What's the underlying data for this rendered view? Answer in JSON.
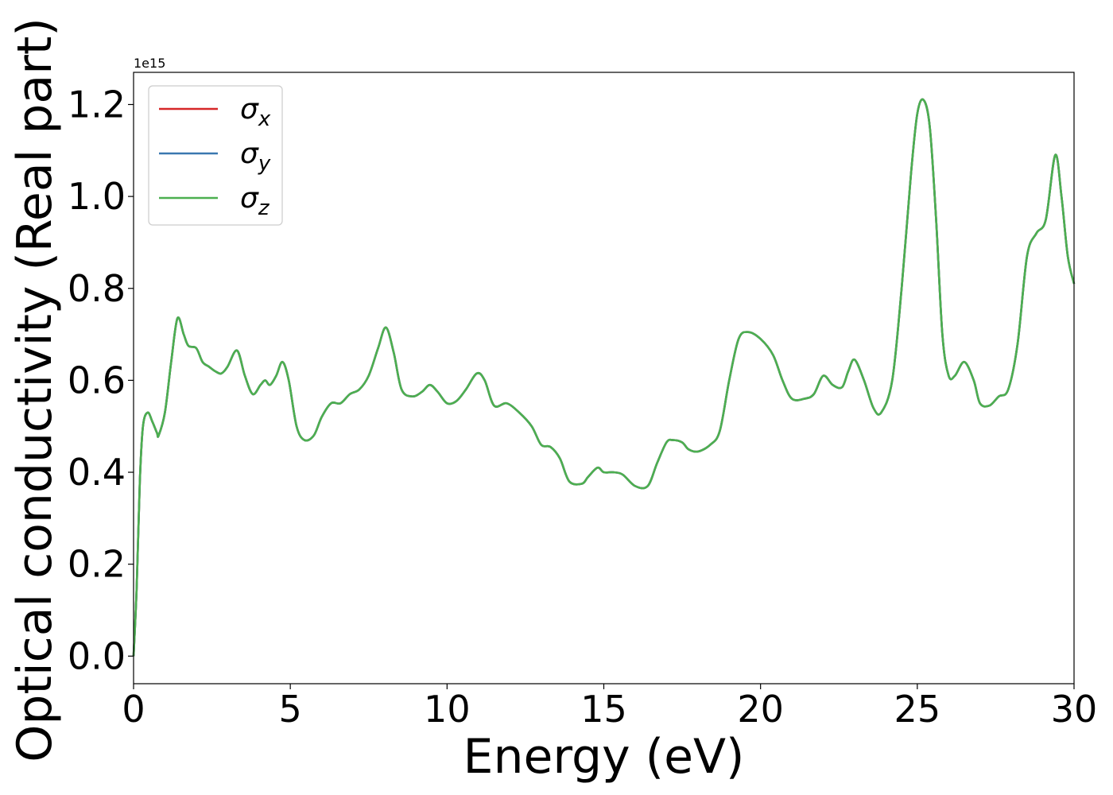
{
  "chart_data": {
    "type": "line",
    "xlabel": "Energy (eV)",
    "ylabel": "Optical conductivity (Real part)",
    "y_offset_label": "1e15",
    "xlim": [
      0,
      30
    ],
    "ylim": [
      -0.06,
      1.27
    ],
    "xticks": [
      0,
      5,
      10,
      15,
      20,
      25,
      30
    ],
    "yticks": [
      0.0,
      0.2,
      0.4,
      0.6,
      0.8,
      1.0,
      1.2
    ],
    "grid": false,
    "legend_position": "upper-left",
    "series": [
      {
        "name": "σx",
        "symbol": "σ",
        "subscript": "x",
        "color": "#d62728",
        "same_as": "shared_curve"
      },
      {
        "name": "σy",
        "symbol": "σ",
        "subscript": "y",
        "color": "#3a78b0",
        "same_as": "shared_curve"
      },
      {
        "name": "σz",
        "symbol": "σ",
        "subscript": "z",
        "color": "#4caf50",
        "same_as": "shared_curve"
      }
    ],
    "shared_curve": {
      "x": [
        0,
        0.1,
        0.2,
        0.3,
        0.45,
        0.6,
        0.75,
        0.8,
        1.0,
        1.2,
        1.4,
        1.6,
        1.75,
        2.0,
        2.2,
        2.4,
        2.6,
        2.8,
        3.0,
        3.3,
        3.55,
        3.8,
        4.05,
        4.2,
        4.35,
        4.55,
        4.75,
        4.95,
        5.2,
        5.45,
        5.75,
        6.0,
        6.3,
        6.6,
        6.9,
        7.2,
        7.5,
        7.8,
        8.05,
        8.3,
        8.55,
        8.9,
        9.2,
        9.45,
        9.7,
        10.0,
        10.3,
        10.6,
        10.95,
        11.2,
        11.5,
        11.9,
        12.3,
        12.7,
        13.0,
        13.3,
        13.6,
        13.9,
        14.3,
        14.5,
        14.8,
        15.0,
        15.3,
        15.6,
        16.0,
        16.4,
        16.7,
        17.0,
        17.2,
        17.5,
        17.7,
        18.0,
        18.4,
        18.7,
        19.0,
        19.3,
        19.6,
        20.0,
        20.4,
        20.7,
        21.0,
        21.4,
        21.7,
        22.0,
        22.3,
        22.6,
        22.8,
        23.0,
        23.3,
        23.6,
        23.85,
        24.2,
        24.5,
        24.8,
        25.0,
        25.2,
        25.4,
        25.6,
        25.8,
        26.0,
        26.2,
        26.5,
        26.8,
        27.0,
        27.3,
        27.6,
        27.9,
        28.2,
        28.5,
        28.8,
        29.1,
        29.4,
        29.6,
        29.8,
        30.0
      ],
      "y": [
        0.0,
        0.15,
        0.38,
        0.5,
        0.53,
        0.51,
        0.485,
        0.48,
        0.53,
        0.64,
        0.735,
        0.7,
        0.675,
        0.67,
        0.64,
        0.63,
        0.62,
        0.615,
        0.63,
        0.665,
        0.61,
        0.57,
        0.59,
        0.6,
        0.59,
        0.61,
        0.64,
        0.6,
        0.5,
        0.47,
        0.48,
        0.52,
        0.55,
        0.55,
        0.57,
        0.58,
        0.61,
        0.67,
        0.715,
        0.66,
        0.58,
        0.565,
        0.575,
        0.59,
        0.575,
        0.55,
        0.555,
        0.58,
        0.615,
        0.6,
        0.545,
        0.55,
        0.53,
        0.5,
        0.46,
        0.455,
        0.43,
        0.38,
        0.375,
        0.39,
        0.41,
        0.4,
        0.4,
        0.395,
        0.37,
        0.37,
        0.42,
        0.465,
        0.47,
        0.465,
        0.45,
        0.445,
        0.46,
        0.49,
        0.6,
        0.69,
        0.705,
        0.69,
        0.655,
        0.6,
        0.56,
        0.56,
        0.57,
        0.61,
        0.59,
        0.585,
        0.62,
        0.645,
        0.6,
        0.54,
        0.53,
        0.6,
        0.8,
        1.05,
        1.18,
        1.21,
        1.15,
        0.95,
        0.7,
        0.61,
        0.61,
        0.64,
        0.6,
        0.55,
        0.545,
        0.565,
        0.58,
        0.68,
        0.87,
        0.92,
        0.95,
        1.09,
        1.0,
        0.87,
        0.81
      ]
    }
  }
}
